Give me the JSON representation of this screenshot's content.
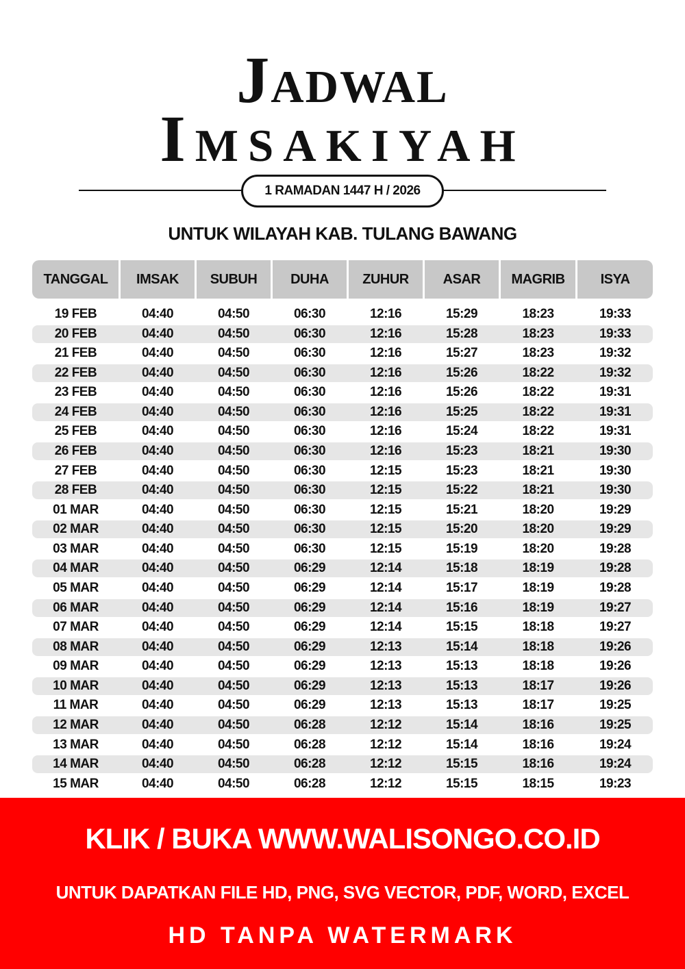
{
  "header": {
    "title_line1": "Jadwal",
    "title_line2": "Imsakiyah",
    "subtitle": "1 RAMADAN 1447 H / 2026",
    "region": "UNTUK WILAYAH KAB. TULANG BAWANG"
  },
  "table": {
    "columns": [
      "TANGGAL",
      "IMSAK",
      "SUBUH",
      "DUHA",
      "ZUHUR",
      "ASAR",
      "MAGRIB",
      "ISYA"
    ],
    "rows": [
      [
        "19 FEB",
        "04:40",
        "04:50",
        "06:30",
        "12:16",
        "15:29",
        "18:23",
        "19:33"
      ],
      [
        "20 FEB",
        "04:40",
        "04:50",
        "06:30",
        "12:16",
        "15:28",
        "18:23",
        "19:33"
      ],
      [
        "21 FEB",
        "04:40",
        "04:50",
        "06:30",
        "12:16",
        "15:27",
        "18:23",
        "19:32"
      ],
      [
        "22 FEB",
        "04:40",
        "04:50",
        "06:30",
        "12:16",
        "15:26",
        "18:22",
        "19:32"
      ],
      [
        "23 FEB",
        "04:40",
        "04:50",
        "06:30",
        "12:16",
        "15:26",
        "18:22",
        "19:31"
      ],
      [
        "24 FEB",
        "04:40",
        "04:50",
        "06:30",
        "12:16",
        "15:25",
        "18:22",
        "19:31"
      ],
      [
        "25 FEB",
        "04:40",
        "04:50",
        "06:30",
        "12:16",
        "15:24",
        "18:22",
        "19:31"
      ],
      [
        "26 FEB",
        "04:40",
        "04:50",
        "06:30",
        "12:16",
        "15:23",
        "18:21",
        "19:30"
      ],
      [
        "27 FEB",
        "04:40",
        "04:50",
        "06:30",
        "12:15",
        "15:23",
        "18:21",
        "19:30"
      ],
      [
        "28 FEB",
        "04:40",
        "04:50",
        "06:30",
        "12:15",
        "15:22",
        "18:21",
        "19:30"
      ],
      [
        "01 MAR",
        "04:40",
        "04:50",
        "06:30",
        "12:15",
        "15:21",
        "18:20",
        "19:29"
      ],
      [
        "02 MAR",
        "04:40",
        "04:50",
        "06:30",
        "12:15",
        "15:20",
        "18:20",
        "19:29"
      ],
      [
        "03 MAR",
        "04:40",
        "04:50",
        "06:30",
        "12:15",
        "15:19",
        "18:20",
        "19:28"
      ],
      [
        "04 MAR",
        "04:40",
        "04:50",
        "06:29",
        "12:14",
        "15:18",
        "18:19",
        "19:28"
      ],
      [
        "05 MAR",
        "04:40",
        "04:50",
        "06:29",
        "12:14",
        "15:17",
        "18:19",
        "19:28"
      ],
      [
        "06 MAR",
        "04:40",
        "04:50",
        "06:29",
        "12:14",
        "15:16",
        "18:19",
        "19:27"
      ],
      [
        "07 MAR",
        "04:40",
        "04:50",
        "06:29",
        "12:14",
        "15:15",
        "18:18",
        "19:27"
      ],
      [
        "08 MAR",
        "04:40",
        "04:50",
        "06:29",
        "12:13",
        "15:14",
        "18:18",
        "19:26"
      ],
      [
        "09 MAR",
        "04:40",
        "04:50",
        "06:29",
        "12:13",
        "15:13",
        "18:18",
        "19:26"
      ],
      [
        "10 MAR",
        "04:40",
        "04:50",
        "06:29",
        "12:13",
        "15:13",
        "18:17",
        "19:26"
      ],
      [
        "11 MAR",
        "04:40",
        "04:50",
        "06:29",
        "12:13",
        "15:13",
        "18:17",
        "19:25"
      ],
      [
        "12 MAR",
        "04:40",
        "04:50",
        "06:28",
        "12:12",
        "15:14",
        "18:16",
        "19:25"
      ],
      [
        "13 MAR",
        "04:40",
        "04:50",
        "06:28",
        "12:12",
        "15:14",
        "18:16",
        "19:24"
      ],
      [
        "14 MAR",
        "04:40",
        "04:50",
        "06:28",
        "12:12",
        "15:15",
        "18:16",
        "19:24"
      ],
      [
        "15 MAR",
        "04:40",
        "04:50",
        "06:28",
        "12:12",
        "15:15",
        "18:15",
        "19:23"
      ]
    ]
  },
  "banner": {
    "line1": "KLIK / BUKA WWW.WALISONGO.CO.ID",
    "line2": "UNTUK DAPATKAN FILE HD, PNG, SVG VECTOR, PDF, WORD, EXCEL",
    "line3": "HD TANPA WATERMARK",
    "background_color": "#ff0000"
  }
}
